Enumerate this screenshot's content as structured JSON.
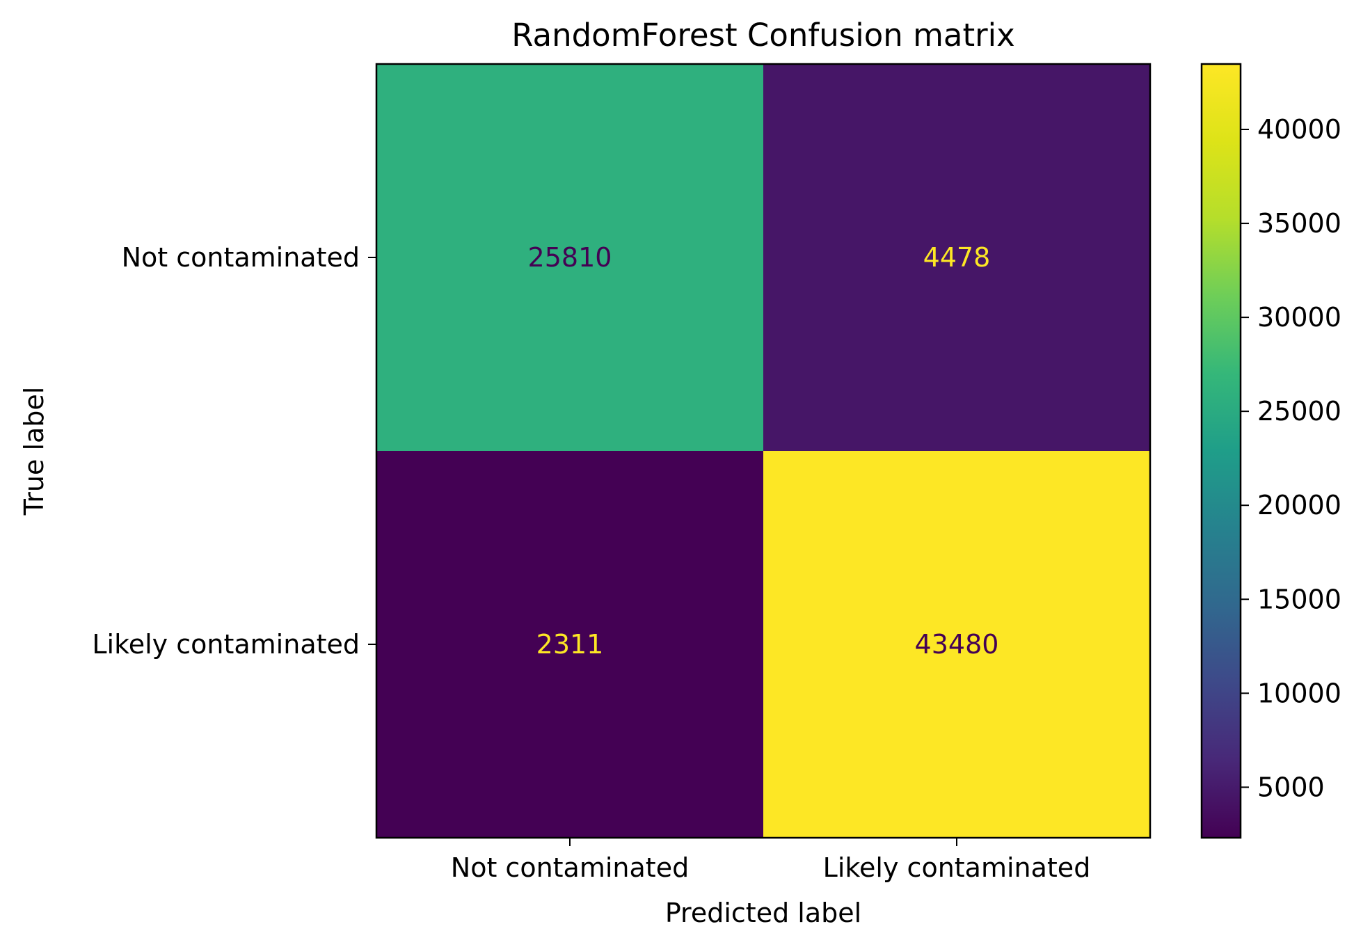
{
  "chart_data": {
    "type": "heatmap",
    "title": "RandomForest Confusion matrix",
    "xlabel": "Predicted label",
    "ylabel": "True label",
    "x_categories": [
      "Not contaminated",
      "Likely contaminated"
    ],
    "y_categories": [
      "Not contaminated",
      "Likely contaminated"
    ],
    "values": [
      [
        25810,
        4478
      ],
      [
        2311,
        43480
      ]
    ],
    "colormap": "viridis",
    "colorbar": {
      "range": [
        2311,
        43480
      ],
      "ticks": [
        5000,
        10000,
        15000,
        20000,
        25000,
        30000,
        35000,
        40000
      ],
      "tick_labels": [
        "5000",
        "10000",
        "15000",
        "20000",
        "25000",
        "30000",
        "35000",
        "40000"
      ]
    },
    "text_colors": {
      "dark": "#440154",
      "light": "#fde725"
    }
  }
}
